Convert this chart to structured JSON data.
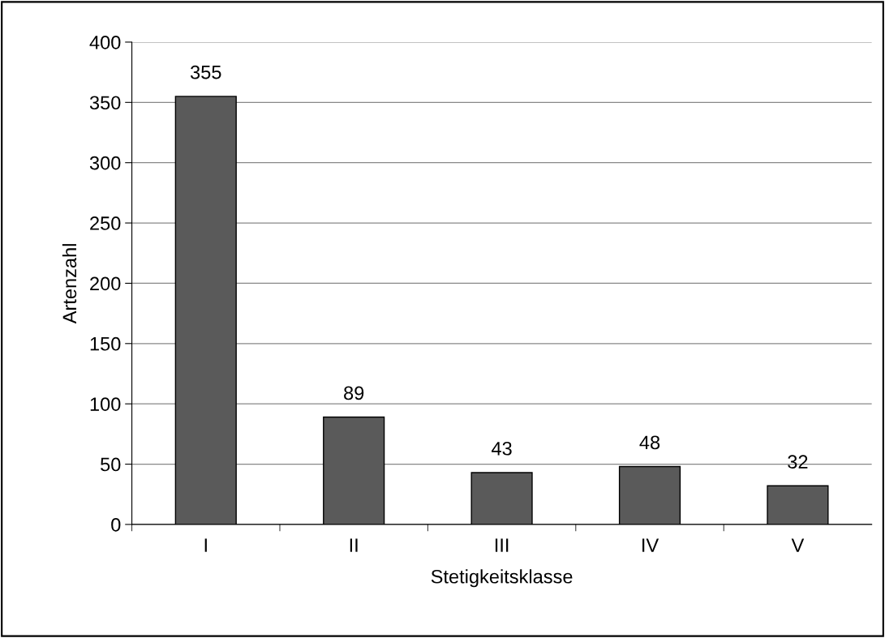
{
  "chart_data": {
    "type": "bar",
    "xlabel": "Stetigkeitsklasse",
    "ylabel": "Artenzahl",
    "categories": [
      "I",
      "II",
      "III",
      "IV",
      "V"
    ],
    "values": [
      355,
      89,
      43,
      48,
      32
    ],
    "color": "#5a5a5a",
    "ylim": [
      0,
      400
    ],
    "yticks": [
      0,
      50,
      100,
      150,
      200,
      250,
      300,
      350,
      400
    ],
    "grid": "y",
    "data_labels": true
  }
}
